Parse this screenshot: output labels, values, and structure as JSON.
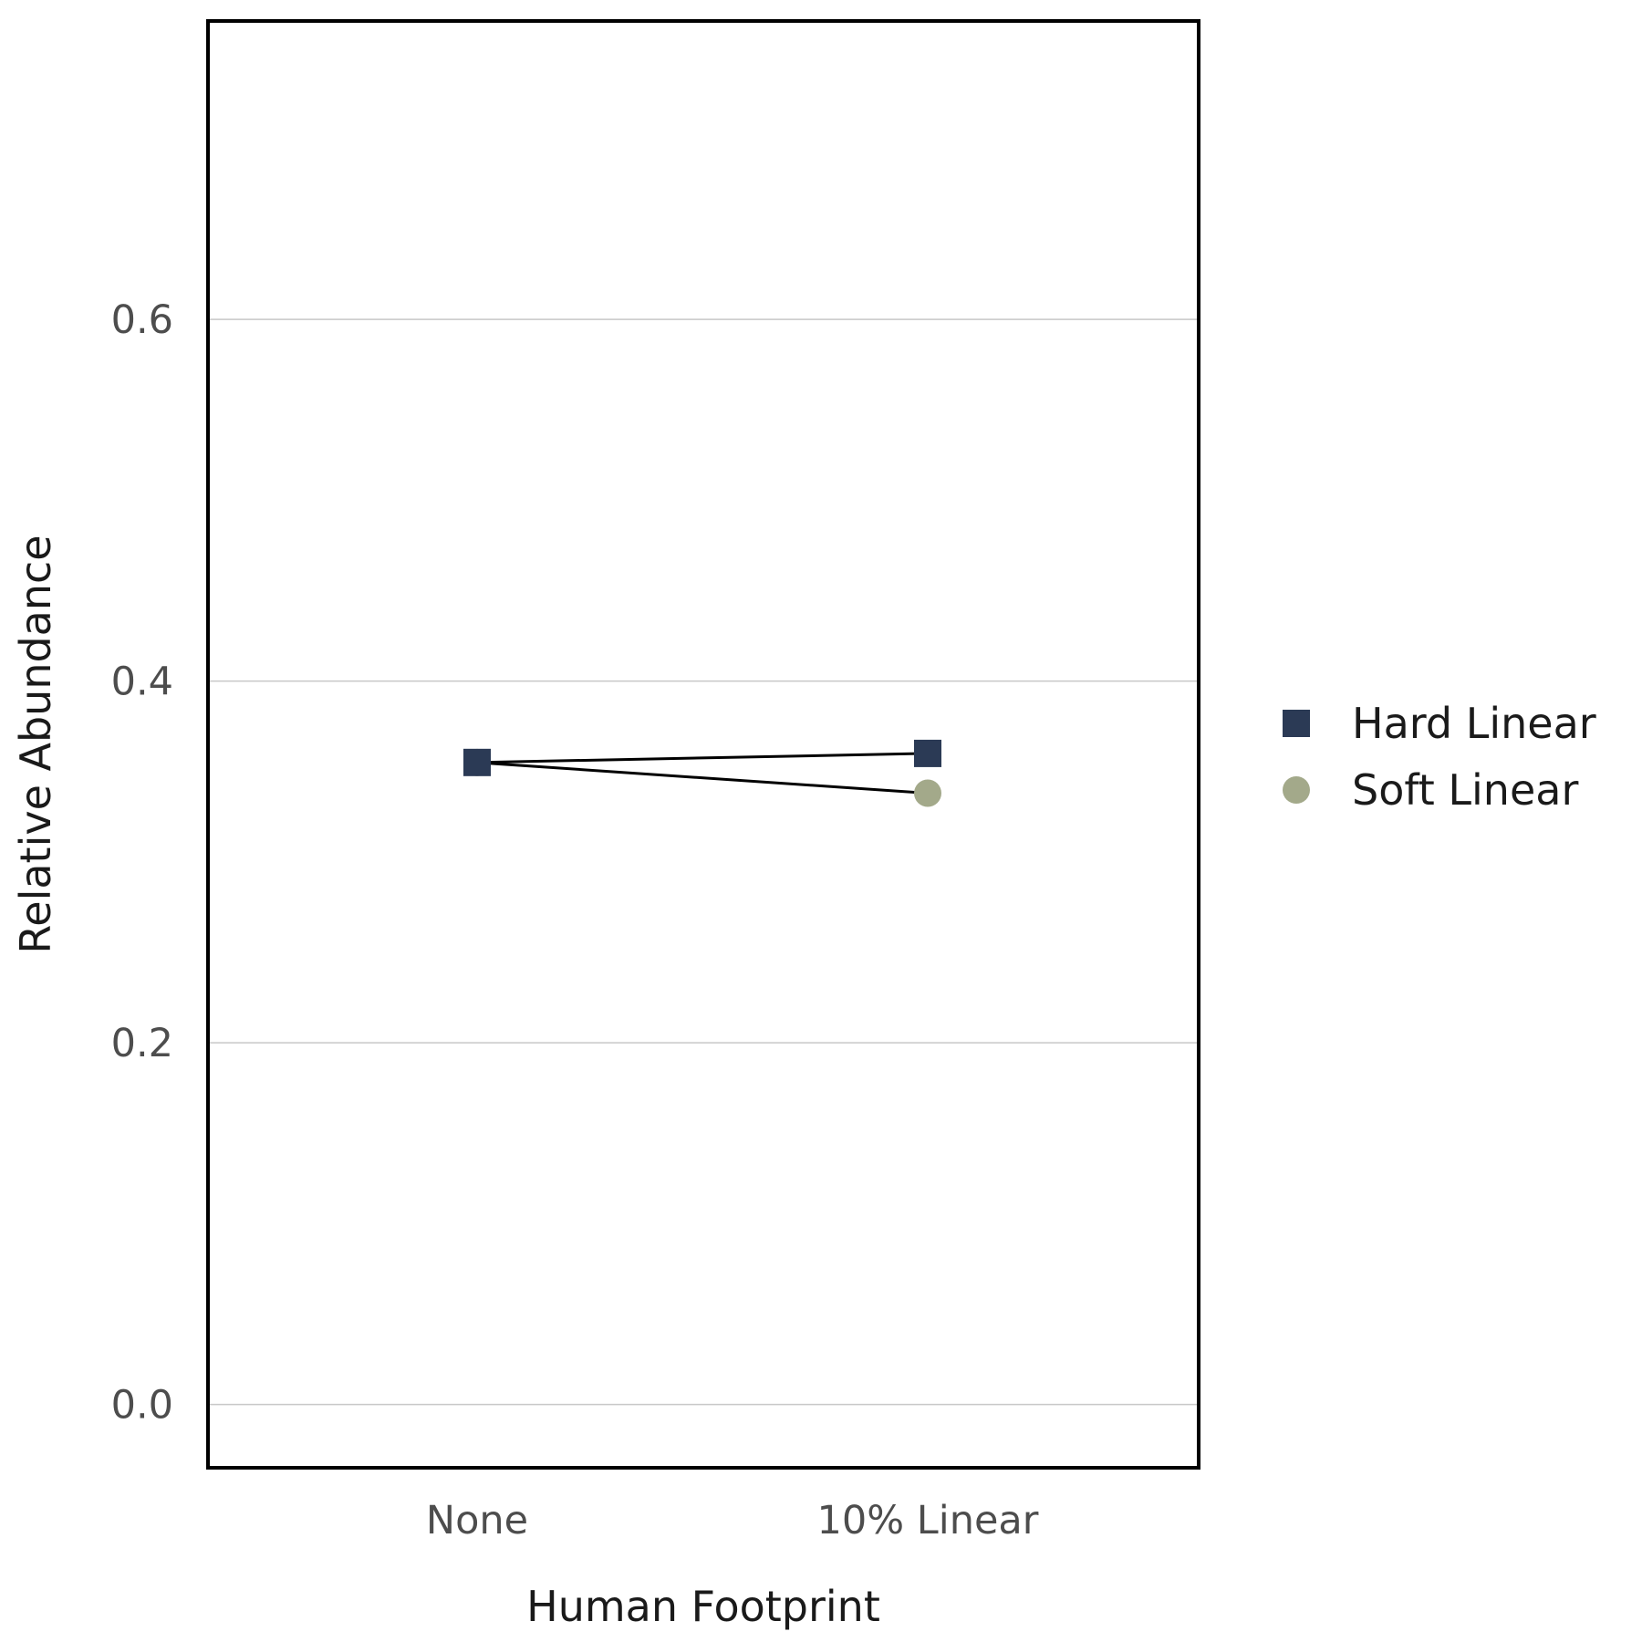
{
  "chart_data": {
    "type": "line",
    "title": "",
    "xlabel": "Human Footprint",
    "ylabel": "Relative Abundance",
    "categories": [
      "None",
      "10% Linear"
    ],
    "ylim": [
      -0.035,
      0.765
    ],
    "yticks": [
      0.0,
      0.2,
      0.4,
      0.6
    ],
    "ytick_labels": [
      "0.0",
      "0.2",
      "0.4",
      "0.6"
    ],
    "grid": "horizontal",
    "legend_position": "right",
    "series": [
      {
        "name": "Hard Linear",
        "values": [
          0.355,
          0.36
        ],
        "marker": "square",
        "color": "#2b3a55"
      },
      {
        "name": "Soft Linear",
        "values": [
          0.355,
          0.338
        ],
        "marker": "circle",
        "color": "#a3a98a"
      }
    ]
  }
}
